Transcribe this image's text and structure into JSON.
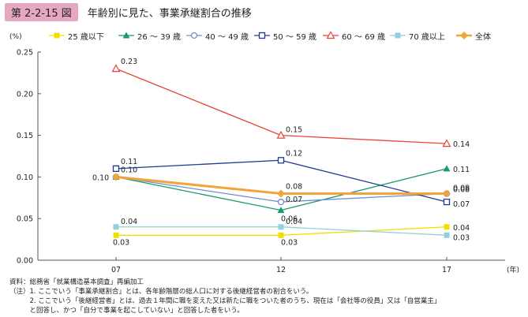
{
  "header": {
    "badge": "第 2-2-15 図",
    "title": "年齢別に見た、事業承継割合の推移"
  },
  "chart_data": {
    "type": "line",
    "title": "年齢別に見た、事業承継割合の推移",
    "y_unit": "(%)",
    "x_unit": "(年)",
    "categories": [
      "07",
      "12",
      "17"
    ],
    "ylim": [
      0,
      0.25
    ],
    "yticks": [
      "0.00",
      "0.05",
      "0.10",
      "0.15",
      "0.20",
      "0.25"
    ],
    "grid": false,
    "legend_position": "top",
    "series": [
      {
        "name": "25 歳以下",
        "values": [
          0.03,
          0.03,
          0.04
        ],
        "color": "#f0e000",
        "marker": "square-filled",
        "labels": [
          "0.03",
          "0.03",
          "0.04"
        ]
      },
      {
        "name": "26 ～ 39 歳",
        "values": [
          0.1,
          0.06,
          0.11
        ],
        "color": "#1a9a6c",
        "marker": "triangle-filled",
        "labels": [
          "",
          "0.06",
          "0.11"
        ]
      },
      {
        "name": "40 ～ 49 歳",
        "values": [
          0.1,
          0.07,
          0.08
        ],
        "color": "#6f8fc8",
        "marker": "circle-open",
        "labels": [
          "0.10",
          "0.07",
          "0.08"
        ]
      },
      {
        "name": "50 ～ 59 歳",
        "values": [
          0.11,
          0.12,
          0.07
        ],
        "color": "#1f3b8a",
        "marker": "square-open",
        "labels": [
          "0.11",
          "0.12",
          "0.07"
        ]
      },
      {
        "name": "60 ～ 69 歳",
        "values": [
          0.23,
          0.15,
          0.14
        ],
        "color": "#e8443a",
        "marker": "triangle-open",
        "labels": [
          "0.23",
          "0.15",
          "0.14"
        ]
      },
      {
        "name": "70 歳以上",
        "values": [
          0.04,
          0.04,
          0.03
        ],
        "color": "#8fd1dc",
        "marker": "square-filled",
        "labels": [
          "0.04",
          "0.04",
          "0.03"
        ]
      },
      {
        "name": "全体",
        "values": [
          0.1,
          0.08,
          0.08
        ],
        "color": "#f2a33a",
        "marker": "diamond-filled",
        "labels": [
          "0.10",
          "0.08",
          "0.08"
        ]
      }
    ]
  },
  "notes": [
    "資料：総務省「就業構造基本調査」再編加工",
    "（注）1. ここでいう「事業承継割合」とは、各年齢階層の総人口に対する後継経営者の割合をいう。",
    "　　　2. ここでいう「後継経営者」とは、過去１年間に職を変えた又は新たに職をついた者のうち、現在は「会社等の役員」又は「自営業主」",
    "　　　と回答し、かつ「自分で事業を起こしていない」と回答した者をいう。"
  ]
}
